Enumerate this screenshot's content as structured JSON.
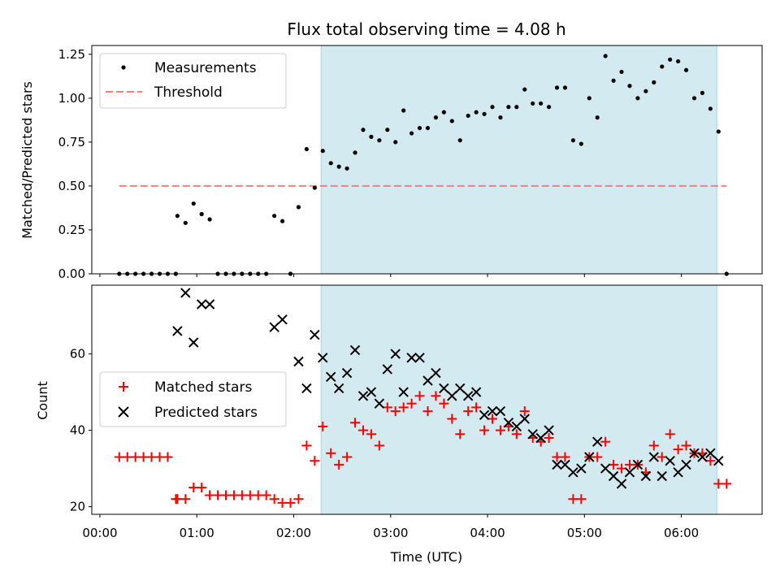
{
  "chart_data": {
    "title": "Flux total observing time = 4.08 h",
    "xlabel": "Time (UTC)",
    "x_ticks": [
      "00:00",
      "01:00",
      "02:00",
      "03:00",
      "04:00",
      "05:00",
      "06:00"
    ],
    "x_range": [
      "-0:05",
      "6:50"
    ],
    "observing_window": [
      "2:17",
      "6:22"
    ],
    "shade_color": "#d3eaf1",
    "panels": [
      {
        "type": "scatter",
        "ylabel": "Matched/Predicted stars",
        "ylim": [
          0,
          1.3
        ],
        "y_ticks": [
          "0.00",
          "0.25",
          "0.50",
          "0.75",
          "1.00",
          "1.25"
        ],
        "legend_position": "top-left",
        "series": [
          {
            "name": "Measurements",
            "marker": "dot",
            "color": "#000000",
            "x": [
              "0:12",
              "0:17",
              "0:22",
              "0:27",
              "0:32",
              "0:37",
              "0:42",
              "0:47",
              "0:48",
              "0:53",
              "0:58",
              "1:03",
              "1:08",
              "1:13",
              "1:18",
              "1:23",
              "1:28",
              "1:33",
              "1:38",
              "1:43",
              "1:48",
              "1:53",
              "1:58",
              "2:03",
              "2:08",
              "2:13",
              "2:18",
              "2:23",
              "2:28",
              "2:33",
              "2:38",
              "2:43",
              "2:48",
              "2:53",
              "2:58",
              "3:03",
              "3:08",
              "3:13",
              "3:18",
              "3:23",
              "3:28",
              "3:33",
              "3:38",
              "3:43",
              "3:48",
              "3:53",
              "3:58",
              "4:03",
              "4:08",
              "4:13",
              "4:18",
              "4:23",
              "4:28",
              "4:33",
              "4:38",
              "4:43",
              "4:48",
              "4:53",
              "4:58",
              "5:03",
              "5:08",
              "5:13",
              "5:18",
              "5:23",
              "5:28",
              "5:33",
              "5:38",
              "5:43",
              "5:48",
              "5:53",
              "5:58",
              "6:03",
              "6:08",
              "6:13",
              "6:18",
              "6:23",
              "6:28"
            ],
            "y": [
              0,
              0,
              0,
              0,
              0,
              0,
              0,
              0,
              0.33,
              0.29,
              0.4,
              0.34,
              0.31,
              0,
              0,
              0,
              0,
              0,
              0,
              0,
              0.33,
              0.3,
              0,
              0.38,
              0.71,
              0.49,
              0.7,
              0.63,
              0.61,
              0.6,
              0.69,
              0.82,
              0.78,
              0.76,
              0.82,
              0.75,
              0.93,
              0.8,
              0.83,
              0.83,
              0.89,
              0.92,
              0.87,
              0.76,
              0.9,
              0.92,
              0.91,
              0.95,
              0.89,
              0.95,
              0.95,
              1.05,
              0.97,
              0.97,
              0.95,
              1.06,
              1.06,
              0.76,
              0.74,
              1.0,
              0.89,
              1.24,
              1.1,
              1.15,
              1.07,
              1.0,
              1.04,
              1.09,
              1.18,
              1.22,
              1.21,
              1.16,
              1.0,
              1.03,
              0.94,
              0.81,
              0
            ]
          },
          {
            "name": "Threshold",
            "marker": "dashed-line",
            "color": "#f08080",
            "x": [
              "0:12",
              "6:28"
            ],
            "y": [
              0.5,
              0.5
            ]
          }
        ]
      },
      {
        "type": "scatter",
        "ylabel": "Count",
        "ylim": [
          18,
          78
        ],
        "y_ticks": [
          "20",
          "40",
          "60"
        ],
        "legend_position": "center-left",
        "series": [
          {
            "name": "Matched stars",
            "marker": "plus",
            "color": "#ff0000",
            "x": [
              "0:12",
              "0:17",
              "0:22",
              "0:27",
              "0:32",
              "0:37",
              "0:42",
              "0:47",
              "0:48",
              "0:53",
              "0:58",
              "1:03",
              "1:08",
              "1:13",
              "1:18",
              "1:23",
              "1:28",
              "1:33",
              "1:38",
              "1:43",
              "1:48",
              "1:53",
              "1:58",
              "2:03",
              "2:08",
              "2:13",
              "2:18",
              "2:23",
              "2:28",
              "2:33",
              "2:38",
              "2:43",
              "2:48",
              "2:53",
              "2:58",
              "3:03",
              "3:08",
              "3:13",
              "3:18",
              "3:23",
              "3:28",
              "3:33",
              "3:38",
              "3:43",
              "3:48",
              "3:53",
              "3:58",
              "4:03",
              "4:08",
              "4:13",
              "4:18",
              "4:23",
              "4:28",
              "4:33",
              "4:38",
              "4:43",
              "4:48",
              "4:53",
              "4:58",
              "5:03",
              "5:08",
              "5:13",
              "5:18",
              "5:23",
              "5:28",
              "5:33",
              "5:38",
              "5:43",
              "5:48",
              "5:53",
              "5:58",
              "6:03",
              "6:08",
              "6:13",
              "6:18",
              "6:23",
              "6:28"
            ],
            "y": [
              33,
              33,
              33,
              33,
              33,
              33,
              33,
              22,
              22,
              22,
              25,
              25,
              23,
              23,
              23,
              23,
              23,
              23,
              23,
              23,
              22,
              21,
              21,
              22,
              36,
              32,
              41,
              34,
              31,
              33,
              42,
              40,
              39,
              36,
              46,
              45,
              46,
              47,
              49,
              45,
              49,
              47,
              43,
              39,
              45,
              46,
              40,
              43,
              40,
              41,
              39,
              45,
              38,
              37,
              38,
              33,
              33,
              22,
              22,
              33,
              33,
              37,
              31,
              30,
              31,
              31,
              29,
              36,
              33,
              39,
              35,
              36,
              34,
              34,
              32,
              26,
              26
            ]
          },
          {
            "name": "Predicted stars",
            "marker": "x",
            "color": "#000000",
            "x": [
              "0:48",
              "0:53",
              "0:58",
              "1:03",
              "1:08",
              "1:48",
              "1:53",
              "2:03",
              "2:08",
              "2:13",
              "2:18",
              "2:23",
              "2:28",
              "2:33",
              "2:38",
              "2:43",
              "2:48",
              "2:53",
              "2:58",
              "3:03",
              "3:08",
              "3:13",
              "3:18",
              "3:23",
              "3:28",
              "3:33",
              "3:38",
              "3:43",
              "3:48",
              "3:53",
              "3:58",
              "4:03",
              "4:08",
              "4:13",
              "4:18",
              "4:23",
              "4:28",
              "4:33",
              "4:38",
              "4:43",
              "4:48",
              "4:53",
              "4:58",
              "5:03",
              "5:08",
              "5:13",
              "5:18",
              "5:23",
              "5:28",
              "5:33",
              "5:38",
              "5:43",
              "5:48",
              "5:53",
              "5:58",
              "6:03",
              "6:08",
              "6:13",
              "6:18",
              "6:23"
            ],
            "y": [
              66,
              76,
              63,
              73,
              73,
              67,
              69,
              58,
              51,
              65,
              59,
              54,
              51,
              55,
              61,
              49,
              50,
              47,
              56,
              60,
              50,
              59,
              59,
              53,
              55,
              51,
              49,
              51,
              49,
              50,
              44,
              45,
              45,
              42,
              41,
              43,
              39,
              38,
              40,
              31,
              31,
              29,
              30,
              33,
              37,
              30,
              28,
              26,
              29,
              31,
              28,
              33,
              28,
              32,
              29,
              31,
              34,
              33,
              34,
              32
            ]
          }
        ]
      }
    ]
  }
}
